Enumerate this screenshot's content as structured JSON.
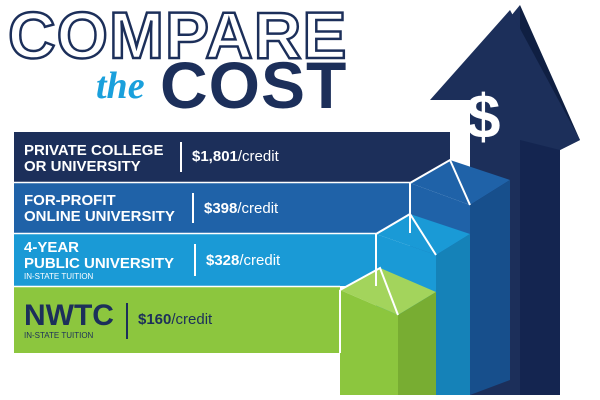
{
  "title": {
    "line1": "COMPARE",
    "line2_small": "the",
    "line2_big": "COST"
  },
  "dollar_symbol": "$",
  "rows": [
    {
      "label_line1": "PRIVATE COLLEGE",
      "label_line2": "OR UNIVERSITY",
      "sub": "",
      "price": "$1,801",
      "unit": "/credit",
      "color": "#1c2f5a"
    },
    {
      "label_line1": "FOR-PROFIT",
      "label_line2": "ONLINE UNIVERSITY",
      "sub": "",
      "price": "$398",
      "unit": "/credit",
      "color": "#1f62a8"
    },
    {
      "label_line1": "4-YEAR",
      "label_line2": "PUBLIC UNIVERSITY",
      "sub": "IN-STATE TUITION",
      "price": "$328",
      "unit": "/credit",
      "color": "#1a9ad6"
    },
    {
      "label_line1": "NWTC",
      "label_line2": "",
      "sub": "IN-STATE TUITION",
      "price": "$160",
      "unit": "/credit",
      "color": "#8cc63e"
    }
  ],
  "colors": {
    "navy": "#1c2f5a",
    "blue": "#1f62a8",
    "light_blue": "#1a9ad6",
    "green": "#8cc63e"
  }
}
